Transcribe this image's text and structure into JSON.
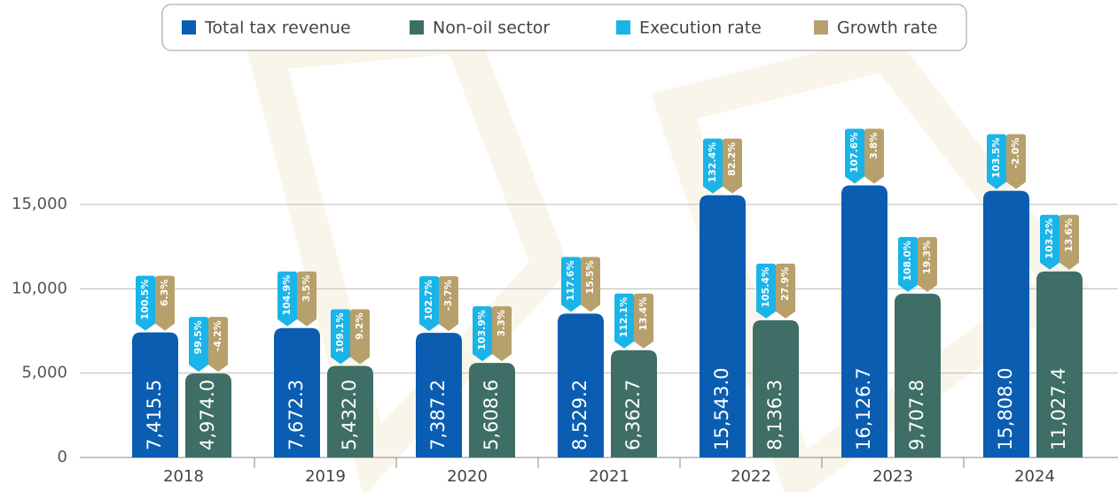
{
  "chart_data": {
    "type": "bar",
    "categories": [
      "2018",
      "2019",
      "2020",
      "2021",
      "2022",
      "2023",
      "2024"
    ],
    "series": [
      {
        "name": "Total tax revenue",
        "color": "#0a5db1",
        "values": [
          7415.5,
          7672.3,
          7387.2,
          8529.2,
          15543.0,
          16126.7,
          15808.0
        ],
        "value_labels": [
          "7,415.5",
          "7,672.3",
          "7,387.2",
          "8,529.2",
          "15,543.0",
          "16,126.7",
          "15,808.0"
        ]
      },
      {
        "name": "Non-oil sector",
        "color": "#3e6e66",
        "values": [
          4974.0,
          5432.0,
          5608.6,
          6362.7,
          8136.3,
          9707.8,
          11027.4
        ],
        "value_labels": [
          "4,974.0",
          "5,432.0",
          "5,608.6",
          "6,362.7",
          "8,136.3",
          "9,707.8",
          "11,027.4"
        ]
      },
      {
        "name": "Execution rate",
        "color": "#1ab4e8",
        "values": [
          [
            100.5,
            99.5
          ],
          [
            104.9,
            109.1
          ],
          [
            102.7,
            103.9
          ],
          [
            117.6,
            112.1
          ],
          [
            132.4,
            105.4
          ],
          [
            107.6,
            108.0
          ],
          [
            103.5,
            103.2
          ]
        ],
        "value_labels": [
          [
            "100.5%",
            "99.5%"
          ],
          [
            "104.9%",
            "109.1%"
          ],
          [
            "102.7%",
            "103.9%"
          ],
          [
            "117.6%",
            "112.1%"
          ],
          [
            "132.4%",
            "105.4%"
          ],
          [
            "107.6%",
            "108.0%"
          ],
          [
            "103.5%",
            "103.2%"
          ]
        ]
      },
      {
        "name": "Growth rate",
        "color": "#b7a06b",
        "values": [
          [
            6.3,
            -4.2
          ],
          [
            3.5,
            9.2
          ],
          [
            -3.7,
            3.3
          ],
          [
            15.5,
            13.4
          ],
          [
            82.2,
            27.9
          ],
          [
            3.8,
            19.3
          ],
          [
            -2.0,
            13.6
          ]
        ],
        "value_labels": [
          [
            "6.3%",
            "-4.2%"
          ],
          [
            "3.5%",
            "9.2%"
          ],
          [
            "-3.7%",
            "3.3%"
          ],
          [
            "15.5%",
            "13.4%"
          ],
          [
            "82.2%",
            "27.9%"
          ],
          [
            "3.8%",
            "19.3%"
          ],
          [
            "-2.0%",
            "13.6%"
          ]
        ]
      }
    ],
    "ylim": [
      0,
      23000
    ],
    "yticks": [
      0,
      {
        "value": 5000,
        "label": "5,000"
      },
      {
        "value": 10000,
        "label": "10,000"
      },
      {
        "value": 15000,
        "label": "15,000"
      }
    ],
    "grid": true
  }
}
